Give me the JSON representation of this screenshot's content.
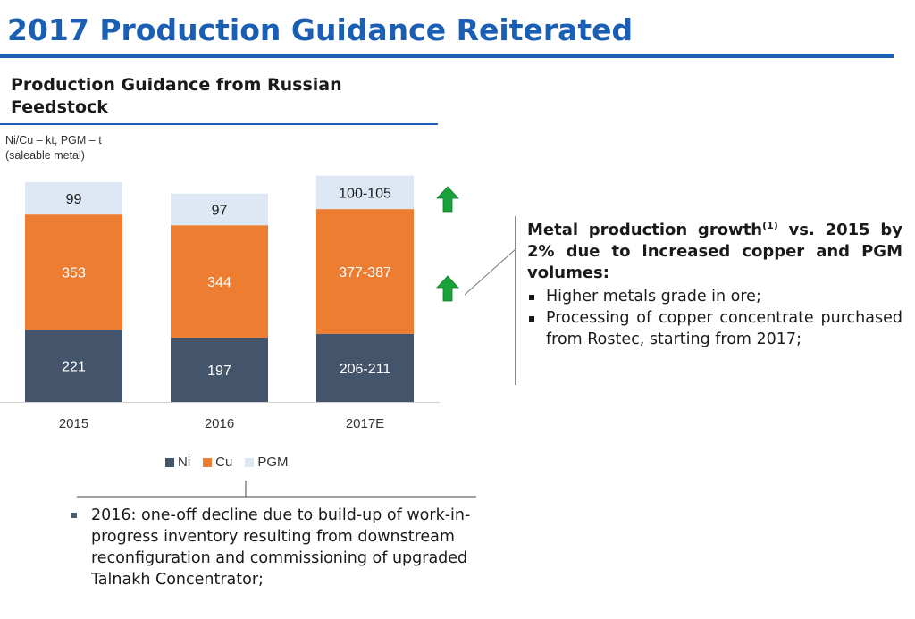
{
  "page": {
    "title": "2017 Production Guidance Reiterated"
  },
  "panel": {
    "title": "Production Guidance from Russian Feedstock",
    "units_line1": "Ni/Cu – kt, PGM – t",
    "units_line2": "(saleable metal)"
  },
  "chart_data": {
    "type": "bar",
    "stacked": true,
    "categories": [
      "2015",
      "2016",
      "2017E"
    ],
    "series": [
      {
        "name": "Ni",
        "color": "#44546a",
        "values": [
          221,
          197,
          208.5
        ],
        "labels": [
          "221",
          "197",
          "206-211"
        ]
      },
      {
        "name": "Cu",
        "color": "#ed7d31",
        "values": [
          353,
          344,
          382
        ],
        "labels": [
          "353",
          "344",
          "377-387"
        ]
      },
      {
        "name": "PGM",
        "color": "#dde8f4",
        "values": [
          99,
          97,
          102.5
        ],
        "labels": [
          "99",
          "97",
          "100-105"
        ]
      }
    ],
    "legend_position": "bottom",
    "grid": false,
    "ylim": [
      0,
      700
    ],
    "annotations": [
      {
        "type": "arrow-up",
        "series": "PGM",
        "category": "2017E",
        "color": "#1aa23a"
      },
      {
        "type": "arrow-up",
        "series": "Cu",
        "category": "2017E",
        "color": "#1aa23a"
      }
    ]
  },
  "callout": {
    "headline_part1": "Metal production growth",
    "headline_sup": "(1)",
    "headline_part2": " vs. 2015 by 2% due to increased copper and PGM volumes:",
    "bullets": [
      "Higher metals grade in ore;",
      "Processing of copper concentrate purchased from Rostec, starting from 2017;"
    ]
  },
  "note": {
    "text": "2016: one-off decline due to build-up of work-in-progress inventory resulting from downstream reconfiguration and commissioning of upgraded Talnakh Concentrator;"
  }
}
